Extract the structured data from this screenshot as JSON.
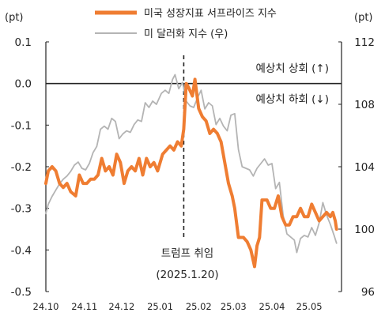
{
  "chart_data": {
    "type": "line",
    "left_unit": "(pt)",
    "right_unit": "(pt)",
    "colors": {
      "surprise": "#ef7d32",
      "dollar": "#b4b4b4",
      "axis": "#222222"
    },
    "y_left": {
      "lim": [
        -0.5,
        0.1
      ],
      "ticks": [
        "0.1",
        "0.0",
        "-0.1",
        "-0.2",
        "-0.3",
        "-0.4",
        "-0.5"
      ],
      "tick_values": [
        0.1,
        0.0,
        -0.1,
        -0.2,
        -0.3,
        -0.4,
        -0.5
      ]
    },
    "y_right": {
      "lim": [
        96,
        112
      ],
      "ticks": [
        "112",
        "108",
        "104",
        "100",
        "96"
      ],
      "tick_values": [
        112,
        108,
        104,
        100,
        96
      ]
    },
    "x_ticks": [
      "24.10",
      "24.11",
      "24.12",
      "25.01",
      "25.02",
      "25.03",
      "25.04",
      "25.05"
    ],
    "x_tick_dates": [
      "2024-10-01",
      "2024-11-01",
      "2024-12-01",
      "2025-01-01",
      "2025-02-01",
      "2025-03-01",
      "2025-04-01",
      "2025-05-01"
    ],
    "x_range": [
      "2024-10-01",
      "2025-05-27"
    ],
    "series": [
      {
        "name": "미국 성장지표 서프라이즈 지수",
        "axis": "left",
        "points": [
          [
            "2024-10-01",
            -0.24
          ],
          [
            "2024-10-03",
            -0.21
          ],
          [
            "2024-10-06",
            -0.2
          ],
          [
            "2024-10-09",
            -0.21
          ],
          [
            "2024-10-12",
            -0.24
          ],
          [
            "2024-10-15",
            -0.25
          ],
          [
            "2024-10-18",
            -0.24
          ],
          [
            "2024-10-21",
            -0.26
          ],
          [
            "2024-10-25",
            -0.27
          ],
          [
            "2024-10-28",
            -0.22
          ],
          [
            "2024-10-31",
            -0.24
          ],
          [
            "2024-11-03",
            -0.24
          ],
          [
            "2024-11-06",
            -0.23
          ],
          [
            "2024-11-09",
            -0.23
          ],
          [
            "2024-11-12",
            -0.22
          ],
          [
            "2024-11-15",
            -0.18
          ],
          [
            "2024-11-18",
            -0.21
          ],
          [
            "2024-11-21",
            -0.2
          ],
          [
            "2024-11-24",
            -0.22
          ],
          [
            "2024-11-27",
            -0.17
          ],
          [
            "2024-11-30",
            -0.19
          ],
          [
            "2024-12-03",
            -0.24
          ],
          [
            "2024-12-06",
            -0.21
          ],
          [
            "2024-12-09",
            -0.2
          ],
          [
            "2024-12-12",
            -0.21
          ],
          [
            "2024-12-15",
            -0.18
          ],
          [
            "2024-12-18",
            -0.22
          ],
          [
            "2024-12-21",
            -0.18
          ],
          [
            "2024-12-24",
            -0.2
          ],
          [
            "2024-12-27",
            -0.19
          ],
          [
            "2024-12-30",
            -0.21
          ],
          [
            "2025-01-03",
            -0.17
          ],
          [
            "2025-01-06",
            -0.16
          ],
          [
            "2025-01-09",
            -0.15
          ],
          [
            "2025-01-12",
            -0.16
          ],
          [
            "2025-01-15",
            -0.14
          ],
          [
            "2025-01-18",
            -0.15
          ],
          [
            "2025-01-20",
            -0.11
          ],
          [
            "2025-01-22",
            0.0
          ],
          [
            "2025-01-24",
            -0.01
          ],
          [
            "2025-01-27",
            -0.03
          ],
          [
            "2025-01-29",
            0.01
          ],
          [
            "2025-02-01",
            -0.06
          ],
          [
            "2025-02-04",
            -0.08
          ],
          [
            "2025-02-07",
            -0.09
          ],
          [
            "2025-02-10",
            -0.12
          ],
          [
            "2025-02-13",
            -0.11
          ],
          [
            "2025-02-16",
            -0.12
          ],
          [
            "2025-02-19",
            -0.14
          ],
          [
            "2025-02-22",
            -0.19
          ],
          [
            "2025-02-25",
            -0.24
          ],
          [
            "2025-02-28",
            -0.27
          ],
          [
            "2025-03-02",
            -0.3
          ],
          [
            "2025-03-05",
            -0.37
          ],
          [
            "2025-03-09",
            -0.37
          ],
          [
            "2025-03-12",
            -0.38
          ],
          [
            "2025-03-15",
            -0.4
          ],
          [
            "2025-03-18",
            -0.44
          ],
          [
            "2025-03-20",
            -0.39
          ],
          [
            "2025-03-22",
            -0.37
          ],
          [
            "2025-03-24",
            -0.28
          ],
          [
            "2025-03-28",
            -0.28
          ],
          [
            "2025-03-31",
            -0.3
          ],
          [
            "2025-04-03",
            -0.3
          ],
          [
            "2025-04-06",
            -0.27
          ],
          [
            "2025-04-09",
            -0.32
          ],
          [
            "2025-04-12",
            -0.34
          ],
          [
            "2025-04-15",
            -0.34
          ],
          [
            "2025-04-18",
            -0.32
          ],
          [
            "2025-04-21",
            -0.32
          ],
          [
            "2025-04-24",
            -0.3
          ],
          [
            "2025-04-27",
            -0.32
          ],
          [
            "2025-04-30",
            -0.32
          ],
          [
            "2025-05-03",
            -0.29
          ],
          [
            "2025-05-06",
            -0.31
          ],
          [
            "2025-05-09",
            -0.33
          ],
          [
            "2025-05-12",
            -0.32
          ],
          [
            "2025-05-15",
            -0.31
          ],
          [
            "2025-05-18",
            -0.32
          ],
          [
            "2025-05-20",
            -0.31
          ],
          [
            "2025-05-22",
            -0.33
          ],
          [
            "2025-05-23",
            -0.35
          ]
        ]
      },
      {
        "name": "미 달러화 지수 (우)",
        "axis": "right",
        "points": [
          [
            "2024-10-01",
            101.0
          ],
          [
            "2024-10-03",
            101.6
          ],
          [
            "2024-10-06",
            102.1
          ],
          [
            "2024-10-09",
            102.5
          ],
          [
            "2024-10-12",
            102.9
          ],
          [
            "2024-10-15",
            103.2
          ],
          [
            "2024-10-18",
            103.4
          ],
          [
            "2024-10-21",
            103.7
          ],
          [
            "2024-10-24",
            104.1
          ],
          [
            "2024-10-27",
            104.3
          ],
          [
            "2024-10-30",
            103.9
          ],
          [
            "2024-11-02",
            103.8
          ],
          [
            "2024-11-05",
            104.2
          ],
          [
            "2024-11-08",
            104.9
          ],
          [
            "2024-11-11",
            105.3
          ],
          [
            "2024-11-14",
            106.4
          ],
          [
            "2024-11-17",
            106.6
          ],
          [
            "2024-11-20",
            106.4
          ],
          [
            "2024-11-23",
            107.1
          ],
          [
            "2024-11-26",
            106.9
          ],
          [
            "2024-11-29",
            105.8
          ],
          [
            "2024-12-02",
            106.1
          ],
          [
            "2024-12-05",
            106.3
          ],
          [
            "2024-12-08",
            106.2
          ],
          [
            "2024-12-11",
            106.7
          ],
          [
            "2024-12-14",
            107.0
          ],
          [
            "2024-12-17",
            106.9
          ],
          [
            "2024-12-20",
            108.1
          ],
          [
            "2024-12-23",
            107.8
          ],
          [
            "2024-12-26",
            108.2
          ],
          [
            "2024-12-29",
            108.0
          ],
          [
            "2025-01-02",
            108.7
          ],
          [
            "2025-01-05",
            108.9
          ],
          [
            "2025-01-08",
            108.7
          ],
          [
            "2025-01-11",
            109.6
          ],
          [
            "2025-01-13",
            109.9
          ],
          [
            "2025-01-16",
            109.0
          ],
          [
            "2025-01-19",
            109.4
          ],
          [
            "2025-01-22",
            108.2
          ],
          [
            "2025-01-25",
            107.9
          ],
          [
            "2025-01-28",
            107.8
          ],
          [
            "2025-01-31",
            108.4
          ],
          [
            "2025-02-03",
            108.9
          ],
          [
            "2025-02-06",
            107.7
          ],
          [
            "2025-02-09",
            108.1
          ],
          [
            "2025-02-12",
            107.9
          ],
          [
            "2025-02-15",
            106.7
          ],
          [
            "2025-02-18",
            107.1
          ],
          [
            "2025-02-21",
            106.6
          ],
          [
            "2025-02-24",
            106.3
          ],
          [
            "2025-02-27",
            107.3
          ],
          [
            "2025-03-02",
            107.4
          ],
          [
            "2025-03-05",
            105.1
          ],
          [
            "2025-03-08",
            104.0
          ],
          [
            "2025-03-11",
            103.9
          ],
          [
            "2025-03-14",
            103.8
          ],
          [
            "2025-03-17",
            103.4
          ],
          [
            "2025-03-20",
            103.9
          ],
          [
            "2025-03-23",
            104.2
          ],
          [
            "2025-03-26",
            104.5
          ],
          [
            "2025-03-29",
            104.1
          ],
          [
            "2025-04-01",
            104.2
          ],
          [
            "2025-04-04",
            102.6
          ],
          [
            "2025-04-07",
            103.0
          ],
          [
            "2025-04-10",
            100.9
          ],
          [
            "2025-04-13",
            99.7
          ],
          [
            "2025-04-16",
            99.5
          ],
          [
            "2025-04-19",
            99.3
          ],
          [
            "2025-04-21",
            98.5
          ],
          [
            "2025-04-24",
            99.4
          ],
          [
            "2025-04-27",
            99.6
          ],
          [
            "2025-04-30",
            99.5
          ],
          [
            "2025-05-03",
            100.1
          ],
          [
            "2025-05-06",
            99.6
          ],
          [
            "2025-05-09",
            100.4
          ],
          [
            "2025-05-12",
            101.7
          ],
          [
            "2025-05-15",
            100.9
          ],
          [
            "2025-05-18",
            100.3
          ],
          [
            "2025-05-21",
            99.6
          ],
          [
            "2025-05-23",
            99.1
          ]
        ]
      }
    ],
    "event": {
      "date": "2025-01-20",
      "label": "트럼프 취임",
      "sublabel": "(2025.1.20)"
    },
    "annotations": {
      "above": "예상치 상회 (↑)",
      "below": "예상치 하회 (↓)"
    },
    "legend_position": "top-center"
  }
}
